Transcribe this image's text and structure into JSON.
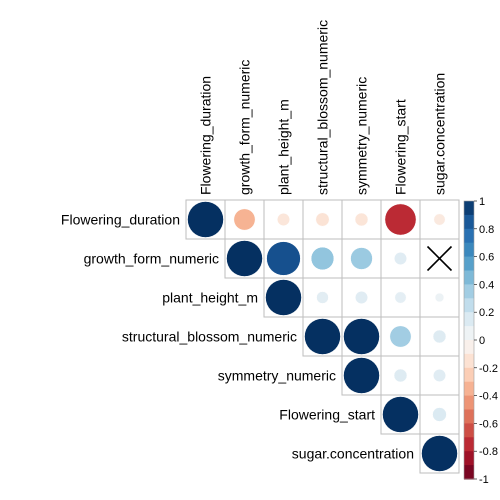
{
  "chart_data": {
    "type": "heatmap",
    "layout": "upper-triangular",
    "marker": "circle",
    "variables": [
      "Flowering_duration",
      "growth_form_numeric",
      "plant_height_m",
      "structural_blossom_numeric",
      "symmetry_numeric",
      "Flowering_start",
      "sugar.concentration"
    ],
    "matrix": [
      [
        1.0,
        -0.35,
        -0.12,
        -0.14,
        -0.13,
        -0.75,
        -0.1
      ],
      [
        null,
        1.0,
        0.88,
        0.4,
        0.37,
        0.12,
        null
      ],
      [
        null,
        null,
        1.0,
        0.11,
        0.12,
        0.1,
        0.06
      ],
      [
        null,
        null,
        null,
        1.0,
        1.0,
        0.35,
        0.13
      ],
      [
        null,
        null,
        null,
        null,
        1.0,
        0.13,
        0.12
      ],
      [
        null,
        null,
        null,
        null,
        null,
        1.0,
        0.15
      ],
      [
        null,
        null,
        null,
        null,
        null,
        null,
        1.0
      ]
    ],
    "insignificant_mark": "cross",
    "insignificant_cells": [
      [
        1,
        6
      ]
    ],
    "colorbar": {
      "range": [
        -1,
        1
      ],
      "ticks": [
        "-1",
        "-0.8",
        "-0.6",
        "-0.4",
        "-0.2",
        "0",
        "0.2",
        "0.4",
        "0.6",
        "0.8",
        "1"
      ],
      "colors": [
        "#67001F",
        "#B2182B",
        "#D6604D",
        "#F4A582",
        "#FDDBC7",
        "#F7F7F7",
        "#D1E5F0",
        "#92C5DE",
        "#4393C3",
        "#2166AC",
        "#053061"
      ]
    },
    "grid": true,
    "legend": "right"
  }
}
